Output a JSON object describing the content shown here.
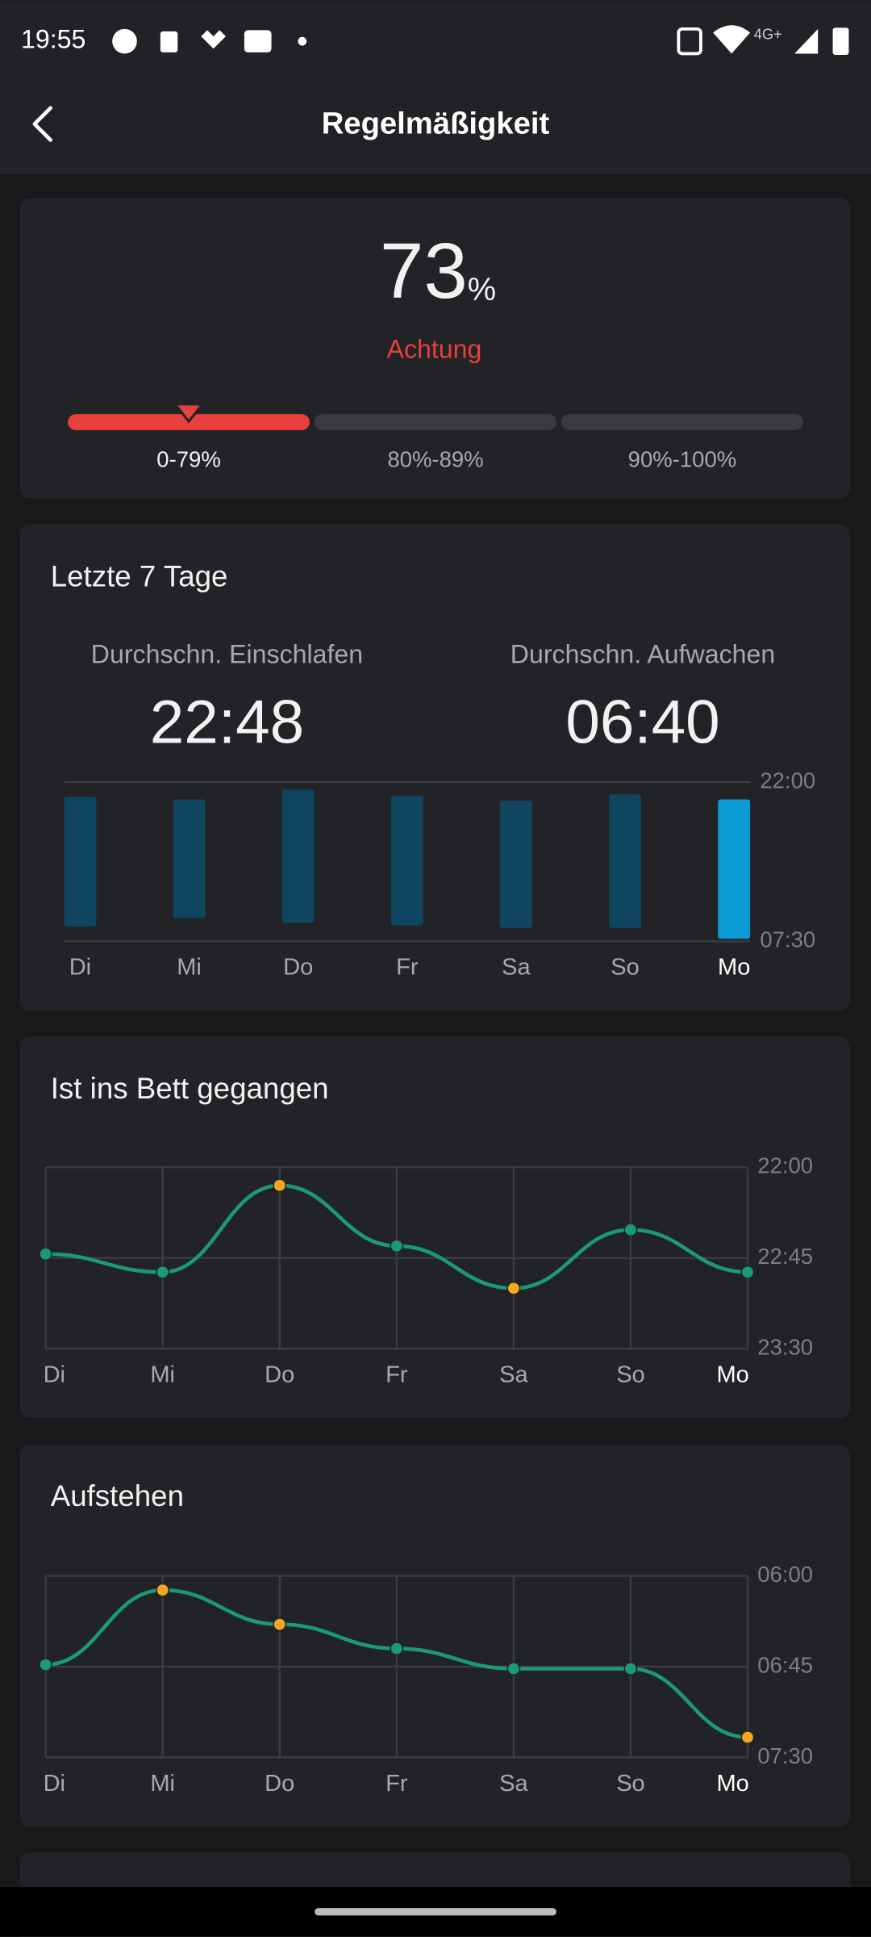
{
  "status_bar": {
    "time": "19:55",
    "network": "4G+"
  },
  "header": {
    "title": "Regelmäßigkeit"
  },
  "score": {
    "value": 73,
    "unit": "%",
    "status": "Achtung",
    "ranges": [
      "0-79%",
      "80%-89%",
      "90%-100%"
    ],
    "active_range": 0
  },
  "last_7_days": {
    "title": "Letzte 7 Tage",
    "avg_sleep_label": "Durchschn. Einschlafen",
    "avg_sleep": "22:48",
    "avg_wake_label": "Durchschn. Aufwachen",
    "avg_wake": "06:40",
    "chart": {
      "type": "floating_bar",
      "categories": [
        "Di",
        "Mi",
        "Do",
        "Fr",
        "Sa",
        "So",
        "Mo"
      ],
      "starts": [
        1373,
        1382,
        1347,
        1369,
        1386,
        1364,
        1382
      ],
      "ends": [
        1837,
        1806,
        1824,
        1833,
        1842,
        1842,
        1881
      ],
      "color": "#10455f",
      "highlight_color": "#0a9bd4",
      "highlight_index": 6,
      "ylim": [
        1890,
        1320
      ],
      "yticks": [
        {
          "value": 1320,
          "label": "22:00"
        },
        {
          "value": 1890,
          "label": "07:30"
        }
      ]
    }
  },
  "bedtime": {
    "title": "Ist ins Bett gegangen",
    "chart": {
      "type": "line",
      "categories": [
        "Di",
        "Mi",
        "Do",
        "Fr",
        "Sa",
        "So",
        "Mo"
      ],
      "values": [
        1363,
        1372,
        1329,
        1359,
        1380,
        1351,
        1372
      ],
      "color": "#1a9a78",
      "point_colors": [
        "#1a9a78",
        "#1a9a78",
        "#f5a623",
        "#1a9a78",
        "#f5a623",
        "#1a9a78",
        "#1a9a78"
      ],
      "highlight_index": 6,
      "grid": true,
      "ylim": [
        1410,
        1320
      ],
      "yticks": [
        {
          "value": 1320,
          "label": "22:00"
        },
        {
          "value": 1365,
          "label": "22:45"
        },
        {
          "value": 1410,
          "label": "23:30"
        }
      ]
    }
  },
  "wake_up": {
    "title": "Aufstehen",
    "chart": {
      "type": "line",
      "categories": [
        "Di",
        "Mi",
        "Do",
        "Fr",
        "Sa",
        "So",
        "Mo"
      ],
      "values": [
        404,
        367,
        384,
        396,
        406,
        406,
        440
      ],
      "color": "#1a9a78",
      "point_colors": [
        "#1a9a78",
        "#f5a623",
        "#f5a623",
        "#1a9a78",
        "#1a9a78",
        "#1a9a78",
        "#f5a623"
      ],
      "highlight_index": 6,
      "grid": true,
      "ylim": [
        450,
        360
      ],
      "yticks": [
        {
          "value": 360,
          "label": "06:00"
        },
        {
          "value": 405,
          "label": "06:45"
        },
        {
          "value": 450,
          "label": "07:30"
        }
      ]
    }
  }
}
